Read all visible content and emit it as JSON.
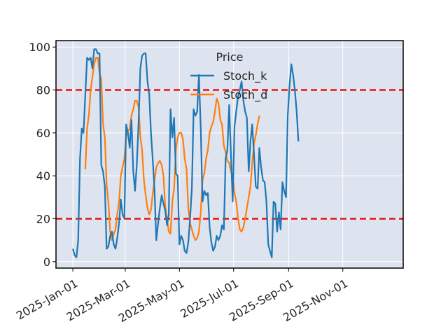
{
  "chart_data": {
    "type": "line",
    "title": "",
    "xlabel": "",
    "ylabel": "",
    "legend": {
      "title": "Price",
      "placement": "top-center",
      "entries": [
        "Stoch_k",
        "Stoch_d"
      ]
    },
    "grid": true,
    "x_range": [
      "2024-12-13",
      "2026-01-08"
    ],
    "y_range": [
      -3,
      103
    ],
    "x_ticks": [
      "2025-01-01",
      "2025-03-01",
      "2025-05-01",
      "2025-07-01",
      "2025-09-01",
      "2025-11-01"
    ],
    "x_tick_labels": [
      "2025-Jan-01",
      "2025-Mar-01",
      "2025-May-01",
      "2025-Jul-01",
      "2025-Sep-01",
      "2025-Nov-01"
    ],
    "y_ticks": [
      0,
      20,
      40,
      60,
      80,
      100
    ],
    "y_tick_labels": [
      "0",
      "20",
      "40",
      "60",
      "80",
      "100"
    ],
    "reference_lines": [
      {
        "y": 80,
        "color": "#ee1111",
        "style": "dashed"
      },
      {
        "y": 20,
        "color": "#ee1111",
        "style": "dashed"
      }
    ],
    "colors": {
      "background": "#dde3ef",
      "grid": "#ffffff",
      "Stoch_k": "#1f77b4",
      "Stoch_d": "#ff7f0e",
      "reference": "#ee1111"
    },
    "series": [
      {
        "name": "Stoch_k",
        "points": [
          [
            "2025-01-01",
            6
          ],
          [
            "2025-01-03",
            3
          ],
          [
            "2025-01-05",
            2
          ],
          [
            "2025-01-07",
            10
          ],
          [
            "2025-01-09",
            48
          ],
          [
            "2025-01-11",
            62
          ],
          [
            "2025-01-13",
            60
          ],
          [
            "2025-01-15",
            78
          ],
          [
            "2025-01-17",
            95
          ],
          [
            "2025-01-19",
            94
          ],
          [
            "2025-01-21",
            95
          ],
          [
            "2025-01-23",
            90
          ],
          [
            "2025-01-25",
            99
          ],
          [
            "2025-01-27",
            99
          ],
          [
            "2025-01-29",
            97
          ],
          [
            "2025-01-31",
            97
          ],
          [
            "2025-02-02",
            45
          ],
          [
            "2025-02-04",
            42
          ],
          [
            "2025-02-06",
            35
          ],
          [
            "2025-02-08",
            6
          ],
          [
            "2025-02-10",
            7
          ],
          [
            "2025-02-12",
            12
          ],
          [
            "2025-02-14",
            14
          ],
          [
            "2025-02-16",
            8
          ],
          [
            "2025-02-18",
            6
          ],
          [
            "2025-02-20",
            11
          ],
          [
            "2025-02-22",
            18
          ],
          [
            "2025-02-24",
            29
          ],
          [
            "2025-02-26",
            22
          ],
          [
            "2025-02-28",
            20
          ],
          [
            "2025-03-02",
            64
          ],
          [
            "2025-03-04",
            60
          ],
          [
            "2025-03-06",
            53
          ],
          [
            "2025-03-08",
            66
          ],
          [
            "2025-03-10",
            42
          ],
          [
            "2025-03-12",
            33
          ],
          [
            "2025-03-14",
            45
          ],
          [
            "2025-03-16",
            65
          ],
          [
            "2025-03-18",
            90
          ],
          [
            "2025-03-20",
            96
          ],
          [
            "2025-03-22",
            97
          ],
          [
            "2025-03-24",
            97
          ],
          [
            "2025-03-26",
            84
          ],
          [
            "2025-03-28",
            78
          ],
          [
            "2025-03-30",
            60
          ],
          [
            "2025-04-01",
            47
          ],
          [
            "2025-04-03",
            33
          ],
          [
            "2025-04-05",
            10
          ],
          [
            "2025-04-07",
            18
          ],
          [
            "2025-04-09",
            25
          ],
          [
            "2025-04-11",
            31
          ],
          [
            "2025-04-13",
            27
          ],
          [
            "2025-04-15",
            24
          ],
          [
            "2025-04-17",
            17
          ],
          [
            "2025-04-19",
            22
          ],
          [
            "2025-04-21",
            71
          ],
          [
            "2025-04-23",
            58
          ],
          [
            "2025-04-25",
            67
          ],
          [
            "2025-04-27",
            41
          ],
          [
            "2025-04-29",
            40
          ],
          [
            "2025-05-01",
            8
          ],
          [
            "2025-05-03",
            12
          ],
          [
            "2025-05-05",
            10
          ],
          [
            "2025-05-07",
            5
          ],
          [
            "2025-05-09",
            4
          ],
          [
            "2025-05-11",
            9
          ],
          [
            "2025-05-13",
            20
          ],
          [
            "2025-05-15",
            34
          ],
          [
            "2025-05-17",
            71
          ],
          [
            "2025-05-19",
            68
          ],
          [
            "2025-05-21",
            70
          ],
          [
            "2025-05-23",
            87
          ],
          [
            "2025-05-25",
            62
          ],
          [
            "2025-05-27",
            28
          ],
          [
            "2025-05-29",
            33
          ],
          [
            "2025-05-31",
            31
          ],
          [
            "2025-06-02",
            32
          ],
          [
            "2025-06-04",
            16
          ],
          [
            "2025-06-06",
            9
          ],
          [
            "2025-06-08",
            5
          ],
          [
            "2025-06-10",
            7
          ],
          [
            "2025-06-12",
            12
          ],
          [
            "2025-06-14",
            10
          ],
          [
            "2025-06-16",
            12
          ],
          [
            "2025-06-18",
            17
          ],
          [
            "2025-06-20",
            15
          ],
          [
            "2025-06-22",
            48
          ],
          [
            "2025-06-24",
            52
          ],
          [
            "2025-06-26",
            73
          ],
          [
            "2025-06-28",
            50
          ],
          [
            "2025-06-30",
            28
          ],
          [
            "2025-07-02",
            63
          ],
          [
            "2025-07-04",
            70
          ],
          [
            "2025-07-06",
            77
          ],
          [
            "2025-07-08",
            80
          ],
          [
            "2025-07-10",
            84
          ],
          [
            "2025-07-12",
            75
          ],
          [
            "2025-07-14",
            70
          ],
          [
            "2025-07-16",
            67
          ],
          [
            "2025-07-18",
            42
          ],
          [
            "2025-07-20",
            56
          ],
          [
            "2025-07-22",
            64
          ],
          [
            "2025-07-24",
            50
          ],
          [
            "2025-07-26",
            35
          ],
          [
            "2025-07-28",
            34
          ],
          [
            "2025-07-30",
            53
          ],
          [
            "2025-08-01",
            44
          ],
          [
            "2025-08-03",
            38
          ],
          [
            "2025-08-05",
            37
          ],
          [
            "2025-08-07",
            28
          ],
          [
            "2025-08-09",
            8
          ],
          [
            "2025-08-11",
            5
          ],
          [
            "2025-08-13",
            2
          ],
          [
            "2025-08-15",
            28
          ],
          [
            "2025-08-17",
            27
          ],
          [
            "2025-08-19",
            14
          ],
          [
            "2025-08-21",
            23
          ],
          [
            "2025-08-23",
            15
          ],
          [
            "2025-08-25",
            37
          ],
          [
            "2025-08-27",
            33
          ],
          [
            "2025-08-29",
            30
          ],
          [
            "2025-08-31",
            68
          ],
          [
            "2025-09-02",
            82
          ],
          [
            "2025-09-04",
            92
          ],
          [
            "2025-09-06",
            87
          ],
          [
            "2025-09-08",
            80
          ],
          [
            "2025-09-10",
            70
          ],
          [
            "2025-09-12",
            56
          ]
        ]
      },
      {
        "name": "Stoch_d",
        "points": [
          [
            "2025-01-15",
            43
          ],
          [
            "2025-01-17",
            62
          ],
          [
            "2025-01-19",
            68
          ],
          [
            "2025-01-21",
            80
          ],
          [
            "2025-01-23",
            86
          ],
          [
            "2025-01-25",
            92
          ],
          [
            "2025-01-27",
            95
          ],
          [
            "2025-01-29",
            95
          ],
          [
            "2025-01-31",
            88
          ],
          [
            "2025-02-02",
            85
          ],
          [
            "2025-02-04",
            64
          ],
          [
            "2025-02-06",
            58
          ],
          [
            "2025-02-08",
            36
          ],
          [
            "2025-02-10",
            28
          ],
          [
            "2025-02-12",
            14
          ],
          [
            "2025-02-14",
            10
          ],
          [
            "2025-02-16",
            13
          ],
          [
            "2025-02-18",
            15
          ],
          [
            "2025-02-20",
            22
          ],
          [
            "2025-02-22",
            28
          ],
          [
            "2025-02-24",
            40
          ],
          [
            "2025-02-26",
            44
          ],
          [
            "2025-02-28",
            48
          ],
          [
            "2025-03-02",
            58
          ],
          [
            "2025-03-04",
            61
          ],
          [
            "2025-03-06",
            62
          ],
          [
            "2025-03-08",
            68
          ],
          [
            "2025-03-10",
            71
          ],
          [
            "2025-03-12",
            75
          ],
          [
            "2025-03-14",
            75
          ],
          [
            "2025-03-16",
            72
          ],
          [
            "2025-03-18",
            58
          ],
          [
            "2025-03-20",
            52
          ],
          [
            "2025-03-22",
            38
          ],
          [
            "2025-03-24",
            31
          ],
          [
            "2025-03-26",
            25
          ],
          [
            "2025-03-28",
            22
          ],
          [
            "2025-03-30",
            24
          ],
          [
            "2025-04-01",
            32
          ],
          [
            "2025-04-03",
            38
          ],
          [
            "2025-04-05",
            44
          ],
          [
            "2025-04-07",
            46
          ],
          [
            "2025-04-09",
            47
          ],
          [
            "2025-04-11",
            45
          ],
          [
            "2025-04-13",
            40
          ],
          [
            "2025-04-15",
            26
          ],
          [
            "2025-04-17",
            20
          ],
          [
            "2025-04-19",
            14
          ],
          [
            "2025-04-21",
            13
          ],
          [
            "2025-04-23",
            28
          ],
          [
            "2025-04-25",
            34
          ],
          [
            "2025-04-27",
            52
          ],
          [
            "2025-04-29",
            58
          ],
          [
            "2025-05-01",
            60
          ],
          [
            "2025-05-03",
            60
          ],
          [
            "2025-05-05",
            57
          ],
          [
            "2025-05-07",
            48
          ],
          [
            "2025-05-09",
            43
          ],
          [
            "2025-05-11",
            25
          ],
          [
            "2025-05-13",
            18
          ],
          [
            "2025-05-15",
            15
          ],
          [
            "2025-05-17",
            12
          ],
          [
            "2025-05-19",
            10
          ],
          [
            "2025-05-21",
            11
          ],
          [
            "2025-05-23",
            14
          ],
          [
            "2025-05-25",
            23
          ],
          [
            "2025-05-27",
            38
          ],
          [
            "2025-05-29",
            41
          ],
          [
            "2025-05-31",
            48
          ],
          [
            "2025-06-02",
            52
          ],
          [
            "2025-06-04",
            60
          ],
          [
            "2025-06-06",
            63
          ],
          [
            "2025-06-08",
            65
          ],
          [
            "2025-06-10",
            70
          ],
          [
            "2025-06-12",
            76
          ],
          [
            "2025-06-14",
            74
          ],
          [
            "2025-06-16",
            66
          ],
          [
            "2025-06-18",
            64
          ],
          [
            "2025-06-20",
            54
          ],
          [
            "2025-06-22",
            51
          ],
          [
            "2025-06-24",
            47
          ],
          [
            "2025-06-26",
            46
          ],
          [
            "2025-06-28",
            42
          ],
          [
            "2025-06-30",
            40
          ],
          [
            "2025-07-02",
            32
          ],
          [
            "2025-07-04",
            28
          ],
          [
            "2025-07-06",
            20
          ],
          [
            "2025-07-08",
            15
          ],
          [
            "2025-07-10",
            14
          ],
          [
            "2025-07-12",
            16
          ],
          [
            "2025-07-14",
            20
          ],
          [
            "2025-07-16",
            25
          ],
          [
            "2025-07-18",
            30
          ],
          [
            "2025-07-20",
            35
          ],
          [
            "2025-07-22",
            46
          ],
          [
            "2025-07-24",
            55
          ],
          [
            "2025-07-26",
            59
          ],
          [
            "2025-07-28",
            64
          ],
          [
            "2025-07-30",
            68
          ]
        ]
      }
    ]
  }
}
